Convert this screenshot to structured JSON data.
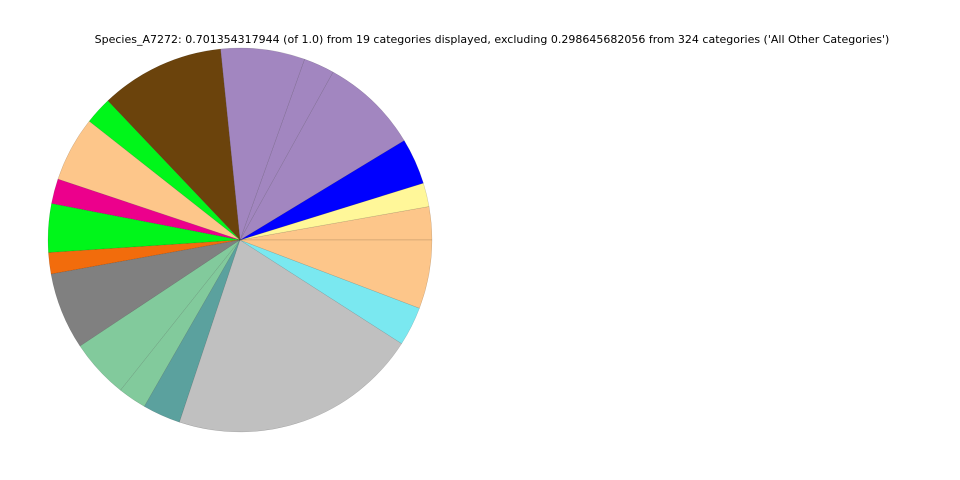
{
  "chart_data": {
    "type": "pie",
    "title": "Species_A7272: 0.701354317944 (of 1.0) from 19 categories displayed, excluding 0.298645682056 from 324 categories ('All Other Categories')",
    "values": [
      0.028,
      0.02,
      0.039,
      0.083,
      0.026,
      0.071,
      0.105,
      0.023,
      0.055,
      0.021,
      0.041,
      0.018,
      0.065,
      0.05,
      0.024,
      0.032,
      0.211,
      0.033,
      0.058
    ],
    "colors": [
      "#fdc68a",
      "#fff799",
      "#0000ff",
      "#a286c0",
      "#a286c0",
      "#a286c0",
      "#6b430c",
      "#00f61a",
      "#fdc68a",
      "#ec008c",
      "#00f61a",
      "#f26c0c",
      "#808080",
      "#82ca9c",
      "#82ca9c",
      "#5ba19e",
      "#c0c0c0",
      "#7ae8f0",
      "#fdc68a"
    ]
  }
}
